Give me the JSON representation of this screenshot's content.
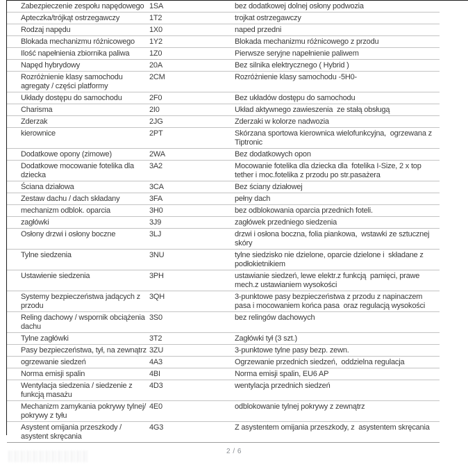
{
  "page": {
    "indicator": "2 / 6"
  },
  "colors": {
    "text": "#3a3a3a",
    "row_separator": "#c3c3c3",
    "frame_border": "#1c1c1c",
    "muted_text": "#8a8f94"
  },
  "table": {
    "rows": [
      {
        "name": "Zabezpieczenie zespołu napędowego",
        "code": "1SA",
        "description": "bez dodatkowej dolnej osłony podwozia"
      },
      {
        "name": "Apteczka/trójkąt ostrzegawczy",
        "code": "1T2",
        "description": "trojkat ostrzegawczy"
      },
      {
        "name": "Rodzaj napędu",
        "code": "1X0",
        "description": "naped przedni"
      },
      {
        "name": "Blokada mechanizmu różnicowego",
        "code": "1Y2",
        "description": "Blokada mechanizmu różnicowego z przodu"
      },
      {
        "name": "Ilość napełnienia zbiornika paliwa",
        "code": "1Z0",
        "description": "Pierwsze seryjne napełnienie paliwem"
      },
      {
        "name": "Napęd hybrydowy",
        "code": "20A",
        "description": "Bez silnika elektrycznego ( Hybrid )"
      },
      {
        "name": "Rozróżnienie klasy samochodu agregaty / części platformy",
        "code": "2CM",
        "description": "Rozróżnienie klasy samochodu -5H0-"
      },
      {
        "name": "Układy dostępu do samochodu",
        "code": "2F0",
        "description": "Bez układów dostępu do samochodu"
      },
      {
        "name": "Charisma",
        "code": "2I0",
        "description": "Układ aktywnego zawieszenia  ze stałą obsługą"
      },
      {
        "name": "Zderzak",
        "code": "2JG",
        "description": "Zderzaki w kolorze nadwozia"
      },
      {
        "name": "kierownice",
        "code": "2PT",
        "description": "Skórzana sportowa kierownica wielofunkcyjna,  ogrzewana z Tiptronic"
      },
      {
        "name": "Dodatkowe opony (zimowe)",
        "code": "2WA",
        "description": "Bez dodatkowych opon"
      },
      {
        "name": "Dodatkowe mocowanie fotelika dla dziecka",
        "code": "3A2",
        "description": "Mocowanie fotelika dla dziecka dla  fotelika I-Size, 2 x top tether i moc.fotelika z przodu po str.pasażera"
      },
      {
        "name": "Ściana działowa",
        "code": "3CA",
        "description": "Bez ściany działowej"
      },
      {
        "name": "Zestaw dachu / dach składany",
        "code": "3FA",
        "description": "pełny dach"
      },
      {
        "name": "mechanizm odblok. oparcia",
        "code": "3H0",
        "description": "bez odblokowania oparcia przednich foteli."
      },
      {
        "name": "zagłówki",
        "code": "3J9",
        "description": "zagłówek przedniego siedzenia"
      },
      {
        "name": "Osłony drzwi i osłony boczne",
        "code": "3LJ",
        "description": "drzwi i osłona boczna, folia piankowa,  wstawki ze sztucznej skóry"
      },
      {
        "name": "Tylne siedzenia",
        "code": "3NU",
        "description": "tylne siedzisko nie dzielone, oparcie dzielone i  składane z podłokietnikiem"
      },
      {
        "name": "Ustawienie siedzenia",
        "code": "3PH",
        "description": "ustawianie siedzeń, lewe elektr.z funkcją  pamięci, prawe mech.z ustawianiem wysokości"
      },
      {
        "name": "Systemy bezpieczeństwa jadących z przodu",
        "code": "3QH",
        "description": "3-punktowe pasy bezpieczeństwa z przodu z napinaczem  pasa i mocowaniem końca pasa  oraz regulacją wysokości"
      },
      {
        "name": "Reling dachowy / wspornik obciążenia dachu",
        "code": "3S0",
        "description": "bez relingów dachowych"
      },
      {
        "name": "Tylne zagłówki",
        "code": "3T2",
        "description": "Zagłówki tył (3 szt.)"
      },
      {
        "name": "Pasy bezpieczeństwa, tył, na zewnątrz",
        "code": "3ZU",
        "description": "3-punktowe tylne pasy bezp. zewn."
      },
      {
        "name": "ogrzewanie siedzeń",
        "code": "4A3",
        "description": "Ogrzewanie przednich siedzeń,  oddzielna regulacja"
      },
      {
        "name": "Norma emisji spalin",
        "code": "4BI",
        "description": "Norma emisji spalin, EU6 AP"
      },
      {
        "name": "Wentylacja siedzenia / siedzenie z funkcją masażu",
        "code": "4D3",
        "description": "wentylacja przednich siedzeń"
      },
      {
        "name": "Mechanizm zamykania pokrywy tylnej/  pokrywy z tyłu",
        "code": "4E0",
        "description": "odblokowanie tylnej pokrywy z zewnątrz"
      },
      {
        "name": "Asystent omijania przeszkody / asystent skręcania",
        "code": "4G3",
        "description": "Z asystentem omijania przeszkody, z  asystentem skręcania"
      }
    ]
  }
}
